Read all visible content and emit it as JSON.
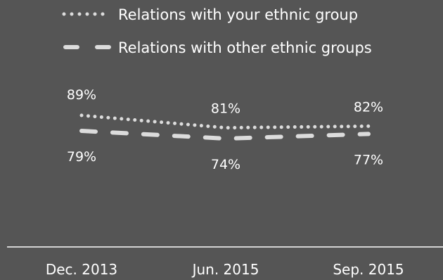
{
  "chart_data": {
    "type": "line",
    "categories": [
      "Dec. 2013",
      "Jun. 2015",
      "Sep. 2015"
    ],
    "series": [
      {
        "name": "Relations with your ethnic group",
        "values": [
          89,
          81,
          82
        ],
        "labels": [
          "89%",
          "81%",
          "82%"
        ],
        "line_style": "dotted",
        "color": "#dcdcdc"
      },
      {
        "name": "Relations with other ethnic groups",
        "values": [
          79,
          74,
          77
        ],
        "labels": [
          "79%",
          "74%",
          "77%"
        ],
        "line_style": "dashed",
        "color": "#dcdcdc"
      }
    ],
    "legend_position": "top",
    "grid": false,
    "background": "#555555",
    "axis_color": "#ffffff",
    "text_color": "#ffffff"
  }
}
